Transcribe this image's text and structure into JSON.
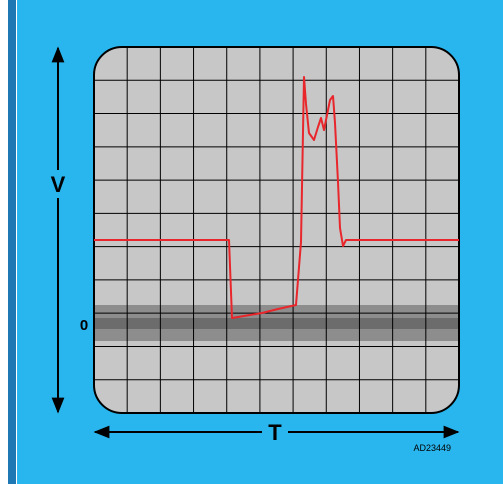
{
  "labels": {
    "y_axis": "V",
    "zero_level": "0",
    "x_axis": "T",
    "figure_id": "AD23449"
  },
  "colors": {
    "background": "#29b6ee",
    "screen": "#c7c7c7",
    "grid": "#000000",
    "zero_band_outer": "#8d8d8d",
    "zero_band_inner": "#6c6c6c",
    "trace": "#e8262b",
    "left_bar": "#1f78b4"
  },
  "diagram": {
    "grid_columns": 11,
    "grid_rows": 11
  }
}
